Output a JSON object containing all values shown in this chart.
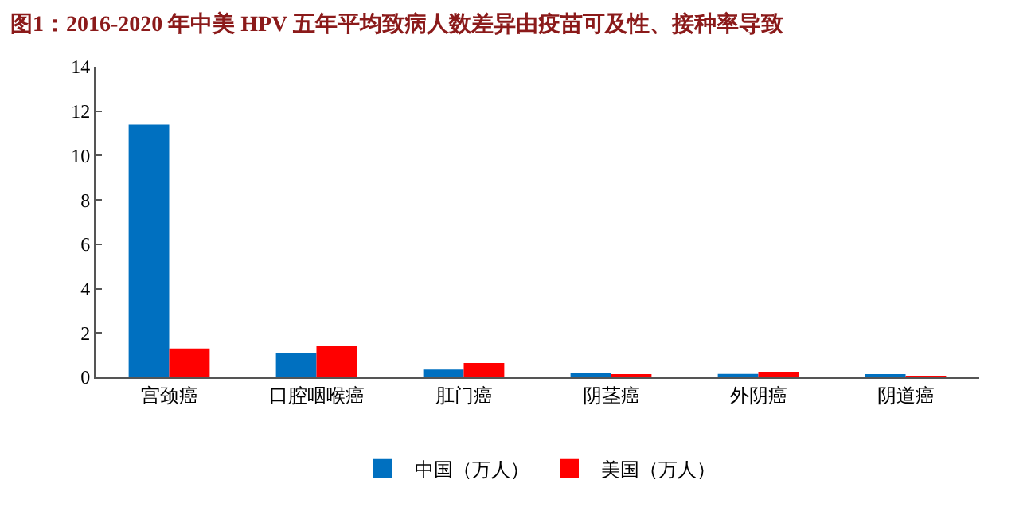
{
  "chart_data": {
    "type": "bar",
    "title": "图1：2016-2020 年中美 HPV 五年平均致病人数差异由疫苗可及性、接种率导致",
    "categories": [
      "宫颈癌",
      "口腔咽喉癌",
      "肛门癌",
      "阴茎癌",
      "外阴癌",
      "阴道癌"
    ],
    "series": [
      {
        "name": "中国（万人）",
        "color": "#0070c0",
        "values": [
          11.4,
          1.1,
          0.35,
          0.2,
          0.15,
          0.1
        ]
      },
      {
        "name": "美国（万人）",
        "color": "#ff0000",
        "values": [
          1.3,
          1.4,
          0.65,
          0.08,
          0.25,
          0.06
        ]
      }
    ],
    "ylim": [
      0,
      14
    ],
    "yticks": [
      0,
      2,
      4,
      6,
      8,
      10,
      12,
      14
    ],
    "grid": false,
    "legend": "bottom"
  }
}
